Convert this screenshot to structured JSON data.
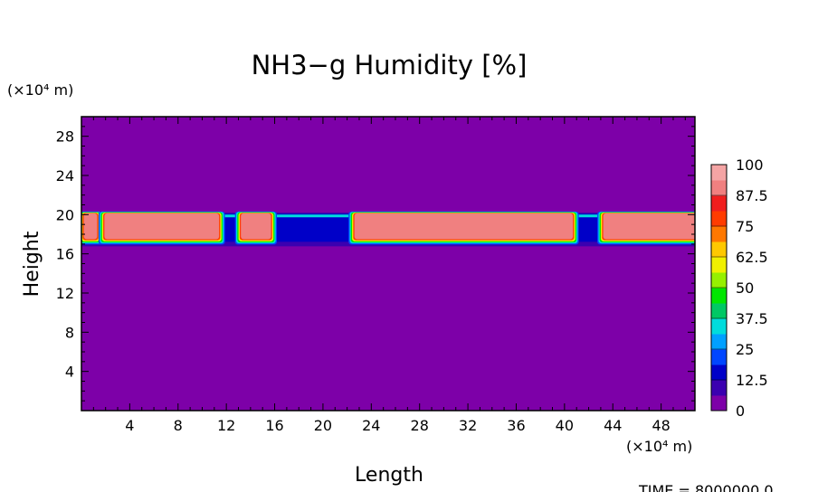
{
  "chart_data": {
    "type": "heatmap",
    "title": "NH3−g Humidity [%]",
    "xlabel": "Length",
    "ylabel": "Height",
    "x_unit": "(×10⁴ m)",
    "y_unit": "(×10⁴ m)",
    "xlim": [
      0,
      50.8
    ],
    "ylim": [
      0,
      30
    ],
    "x_ticks": [
      4,
      8,
      12,
      16,
      20,
      24,
      28,
      32,
      36,
      40,
      44,
      48
    ],
    "y_ticks": [
      4,
      8,
      12,
      16,
      20,
      24,
      28
    ],
    "colorbar": {
      "labels": [
        "0",
        "12.5",
        "25",
        "37.5",
        "50",
        "62.5",
        "75",
        "87.5",
        "100"
      ],
      "levels": [
        0,
        12.5,
        25,
        37.5,
        50,
        62.5,
        75,
        87.5,
        100
      ],
      "colors": [
        "#7d00a8",
        "#3b00b0",
        "#0000c8",
        "#0046ff",
        "#00a0ff",
        "#00dcdc",
        "#00c864",
        "#00e600",
        "#96f000",
        "#f0f000",
        "#ffc800",
        "#ff7800",
        "#ff3c00",
        "#f01e1e",
        "#f08080",
        "#f4a4a4"
      ]
    },
    "background_value": 0,
    "layer_base_height": 17.6,
    "layer_top_height": 20.1,
    "saturated_regions": [
      {
        "x_start": 0.3,
        "x_end": 1.2,
        "value": 100
      },
      {
        "x_start": 2.0,
        "x_end": 11.3,
        "value": 100
      },
      {
        "x_start": 13.3,
        "x_end": 15.6,
        "value": 100
      },
      {
        "x_start": 22.7,
        "x_end": 40.6,
        "value": 100
      },
      {
        "x_start": 43.3,
        "x_end": 50.8,
        "value": 100
      }
    ],
    "time_label": "TIME = 8000000.0"
  }
}
